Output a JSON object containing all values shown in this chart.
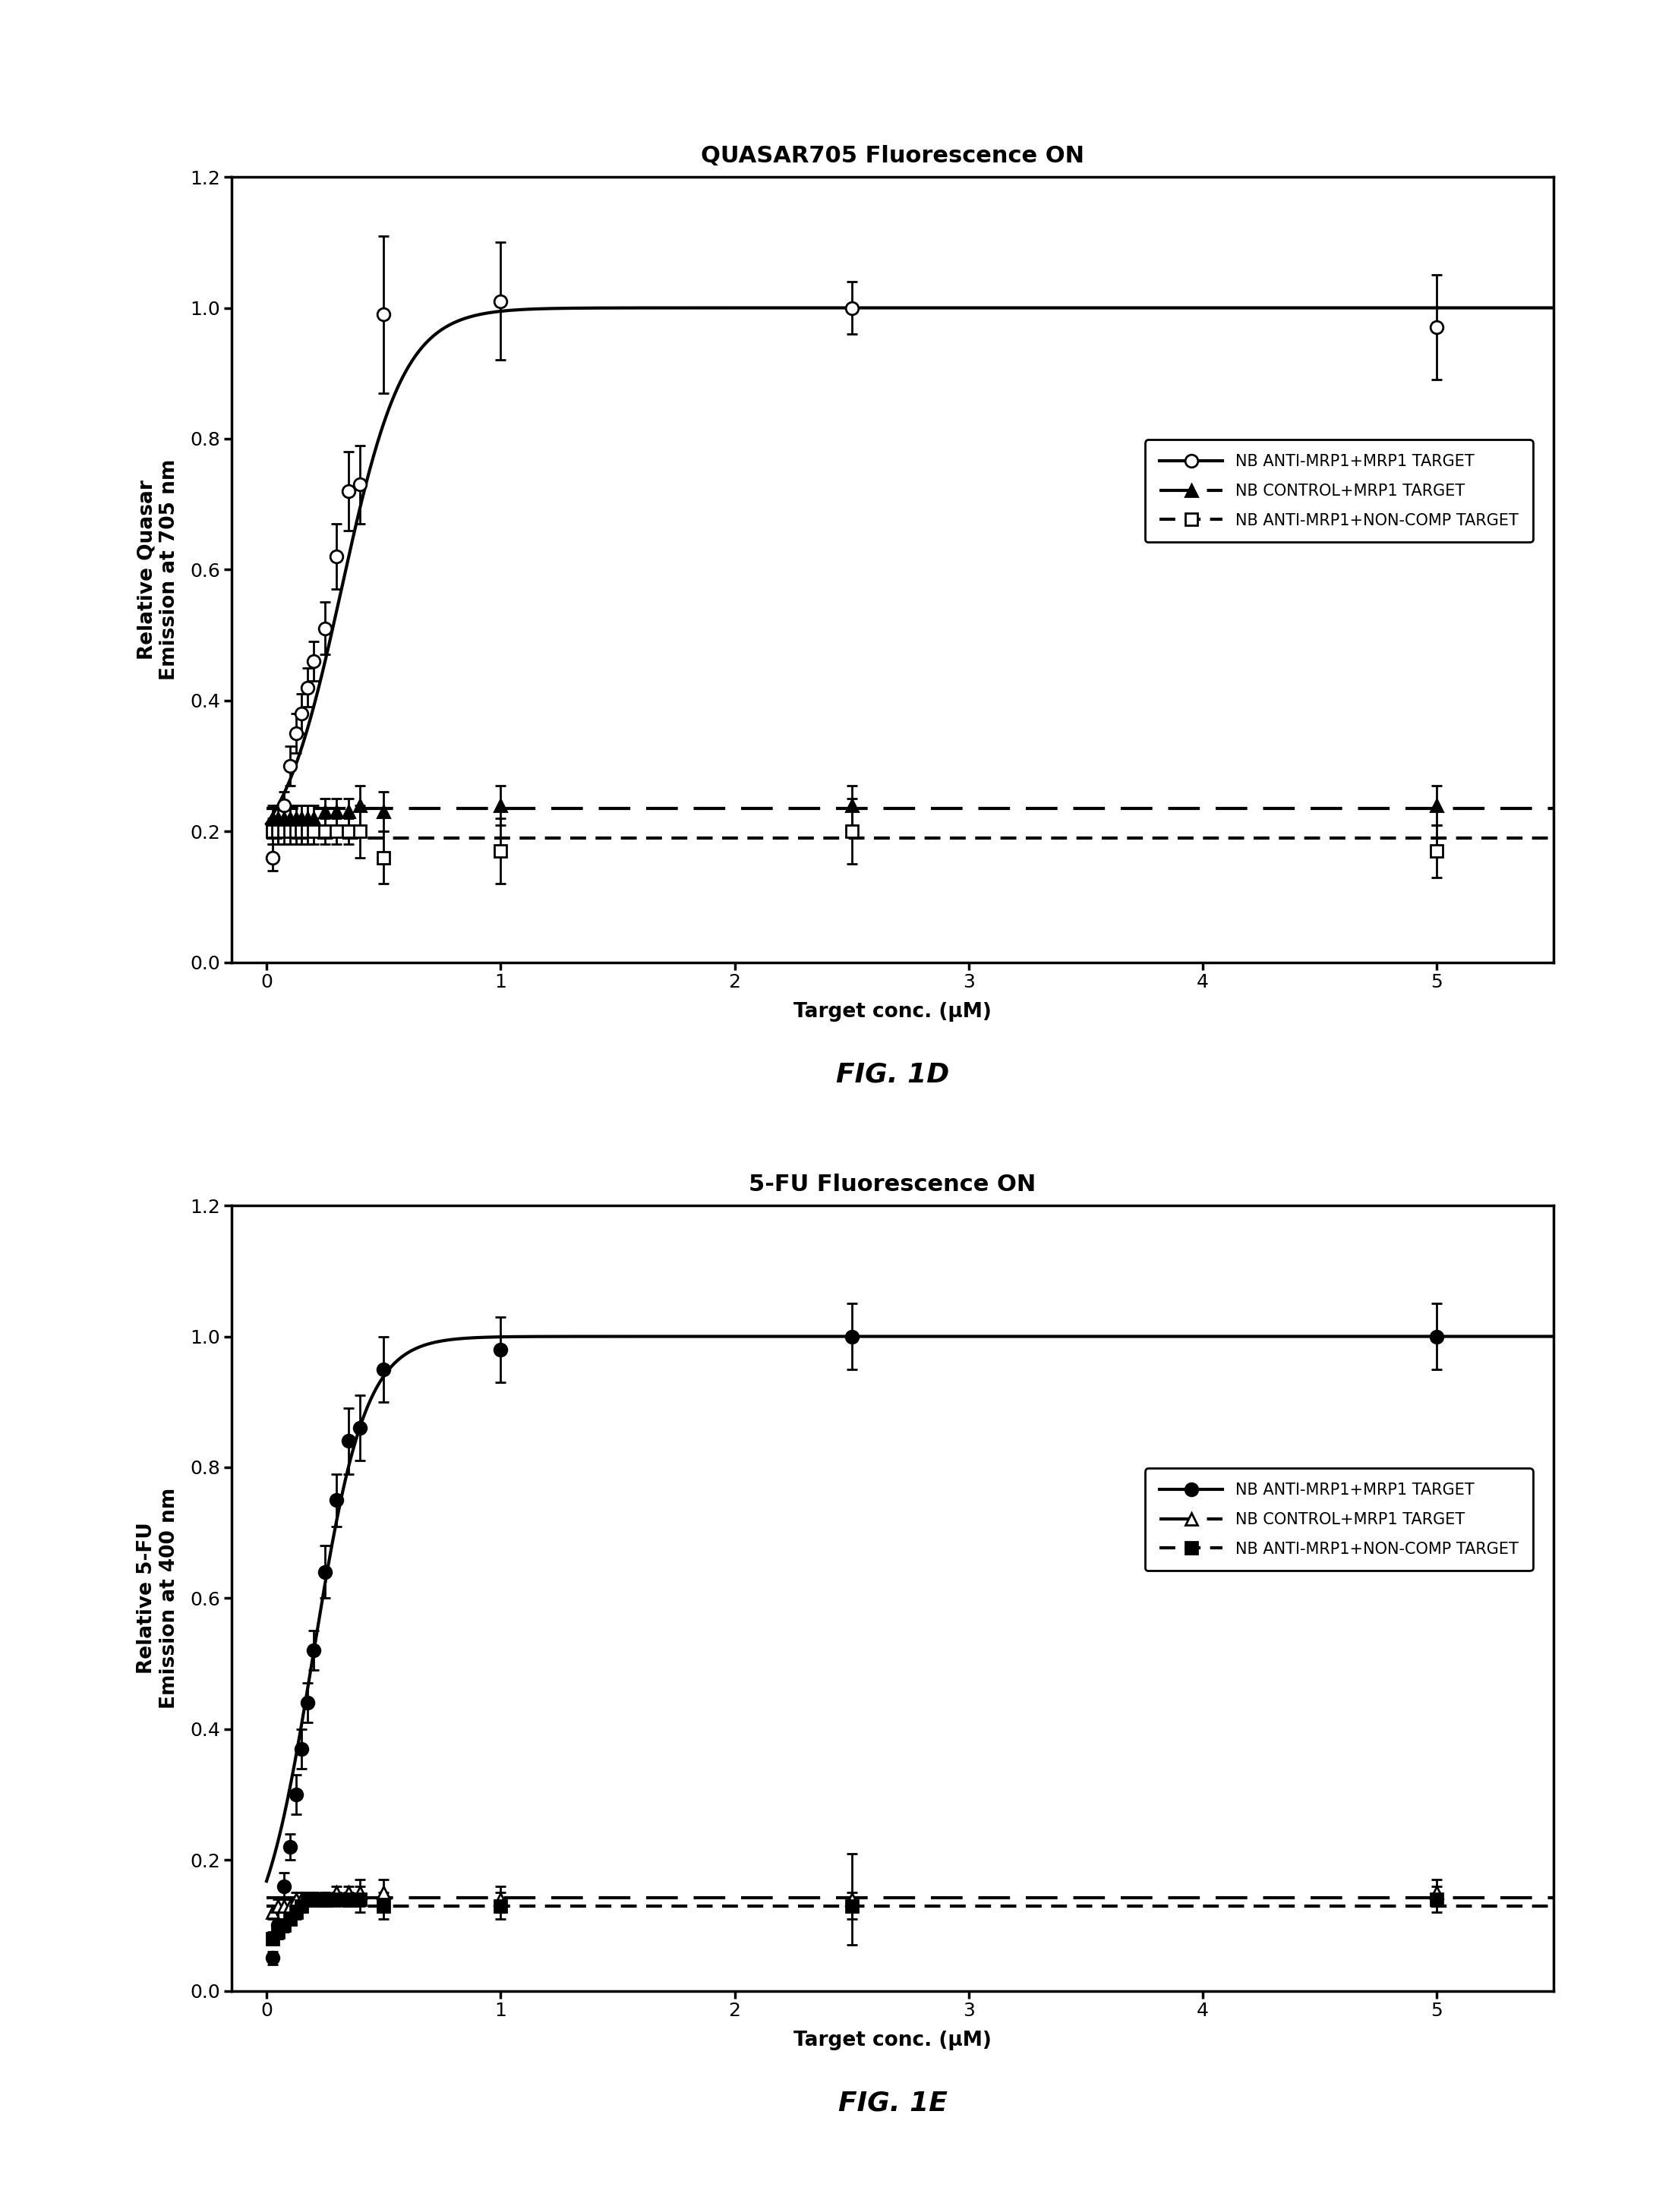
{
  "fig1d_title": "QUASAR705 Fluorescence ON",
  "fig1e_title": "5-FU Fluorescence ON",
  "fig1d_ylabel": "Relative Quasar\nEmission at 705 nm",
  "fig1e_ylabel": "Relative 5-FU\nEmission at 400 nm",
  "xlabel": "Target conc. (μM)",
  "fig1d_caption": "FIG. 1D",
  "fig1e_caption": "FIG. 1E",
  "ylim": [
    0,
    1.2
  ],
  "xlim": [
    -0.15,
    5.5
  ],
  "xticks": [
    0,
    1,
    2,
    3,
    4,
    5
  ],
  "yticks": [
    0,
    0.2,
    0.4,
    0.6,
    0.8,
    1.0,
    1.2
  ],
  "series1d_1_x": [
    0.025,
    0.05,
    0.075,
    0.1,
    0.125,
    0.15,
    0.175,
    0.2,
    0.25,
    0.3,
    0.35,
    0.4,
    0.5,
    1.0,
    2.5,
    5.0
  ],
  "series1d_1_y": [
    0.16,
    0.2,
    0.24,
    0.3,
    0.35,
    0.38,
    0.42,
    0.46,
    0.51,
    0.62,
    0.72,
    0.73,
    0.99,
    1.01,
    1.0,
    0.97
  ],
  "series1d_1_yerr": [
    0.02,
    0.02,
    0.02,
    0.03,
    0.03,
    0.03,
    0.03,
    0.03,
    0.04,
    0.05,
    0.06,
    0.06,
    0.12,
    0.09,
    0.04,
    0.08
  ],
  "series1d_2_x": [
    0.025,
    0.05,
    0.075,
    0.1,
    0.125,
    0.15,
    0.175,
    0.2,
    0.25,
    0.3,
    0.35,
    0.4,
    0.5,
    1.0,
    2.5,
    5.0
  ],
  "series1d_2_y": [
    0.22,
    0.22,
    0.22,
    0.22,
    0.22,
    0.22,
    0.22,
    0.22,
    0.23,
    0.23,
    0.23,
    0.24,
    0.23,
    0.24,
    0.24,
    0.24
  ],
  "series1d_2_yerr": [
    0.02,
    0.02,
    0.02,
    0.02,
    0.02,
    0.02,
    0.02,
    0.02,
    0.02,
    0.02,
    0.02,
    0.03,
    0.03,
    0.03,
    0.03,
    0.03
  ],
  "series1d_3_x": [
    0.025,
    0.05,
    0.075,
    0.1,
    0.125,
    0.15,
    0.175,
    0.2,
    0.25,
    0.3,
    0.35,
    0.4,
    0.5,
    1.0,
    2.5,
    5.0
  ],
  "series1d_3_y": [
    0.2,
    0.2,
    0.2,
    0.2,
    0.2,
    0.2,
    0.2,
    0.2,
    0.2,
    0.2,
    0.2,
    0.2,
    0.16,
    0.17,
    0.2,
    0.17
  ],
  "series1d_3_yerr": [
    0.02,
    0.02,
    0.02,
    0.02,
    0.02,
    0.02,
    0.02,
    0.02,
    0.02,
    0.02,
    0.02,
    0.04,
    0.04,
    0.05,
    0.05,
    0.04
  ],
  "series1e_1_x": [
    0.025,
    0.05,
    0.075,
    0.1,
    0.125,
    0.15,
    0.175,
    0.2,
    0.25,
    0.3,
    0.35,
    0.4,
    0.5,
    1.0,
    2.5,
    5.0
  ],
  "series1e_1_y": [
    0.05,
    0.1,
    0.16,
    0.22,
    0.3,
    0.37,
    0.44,
    0.52,
    0.64,
    0.75,
    0.84,
    0.86,
    0.95,
    0.98,
    1.0,
    1.0
  ],
  "series1e_1_yerr": [
    0.01,
    0.02,
    0.02,
    0.02,
    0.03,
    0.03,
    0.03,
    0.03,
    0.04,
    0.04,
    0.05,
    0.05,
    0.05,
    0.05,
    0.05,
    0.05
  ],
  "series1e_2_x": [
    0.025,
    0.05,
    0.075,
    0.1,
    0.125,
    0.15,
    0.175,
    0.2,
    0.25,
    0.3,
    0.35,
    0.4,
    0.5,
    1.0,
    2.5,
    5.0
  ],
  "series1e_2_y": [
    0.12,
    0.13,
    0.13,
    0.13,
    0.14,
    0.14,
    0.14,
    0.14,
    0.14,
    0.15,
    0.15,
    0.15,
    0.15,
    0.14,
    0.14,
    0.15
  ],
  "series1e_2_yerr": [
    0.01,
    0.01,
    0.01,
    0.01,
    0.01,
    0.01,
    0.01,
    0.01,
    0.01,
    0.01,
    0.01,
    0.02,
    0.02,
    0.02,
    0.07,
    0.02
  ],
  "series1e_3_x": [
    0.025,
    0.05,
    0.075,
    0.1,
    0.125,
    0.15,
    0.175,
    0.2,
    0.25,
    0.3,
    0.35,
    0.4,
    0.5,
    1.0,
    2.5,
    5.0
  ],
  "series1e_3_y": [
    0.08,
    0.09,
    0.1,
    0.11,
    0.12,
    0.13,
    0.14,
    0.14,
    0.14,
    0.14,
    0.14,
    0.14,
    0.13,
    0.13,
    0.13,
    0.14
  ],
  "series1e_3_yerr": [
    0.01,
    0.01,
    0.01,
    0.01,
    0.01,
    0.01,
    0.01,
    0.01,
    0.01,
    0.01,
    0.01,
    0.02,
    0.02,
    0.02,
    0.02,
    0.02
  ],
  "legend1d": [
    "NB ANTI-MRP1+MRP1 TARGET",
    "NB CONTROL+MRP1 TARGET",
    "NB ANTI-MRP1+NON-COMP TARGET"
  ],
  "legend1e": [
    "NB ANTI-MRP1+MRP1 TARGET",
    "NB CONTROL+MRP1 TARGET",
    "NB ANTI-MRP1+NON-COMP TARGET"
  ],
  "line_color": "#000000",
  "background_color": "#ffffff",
  "title_fontsize": 22,
  "label_fontsize": 19,
  "tick_fontsize": 18,
  "legend_fontsize": 15,
  "caption_fontsize": 26,
  "linewidth": 3.0,
  "marker_size": 12,
  "elinewidth": 2.0,
  "capsize": 5
}
